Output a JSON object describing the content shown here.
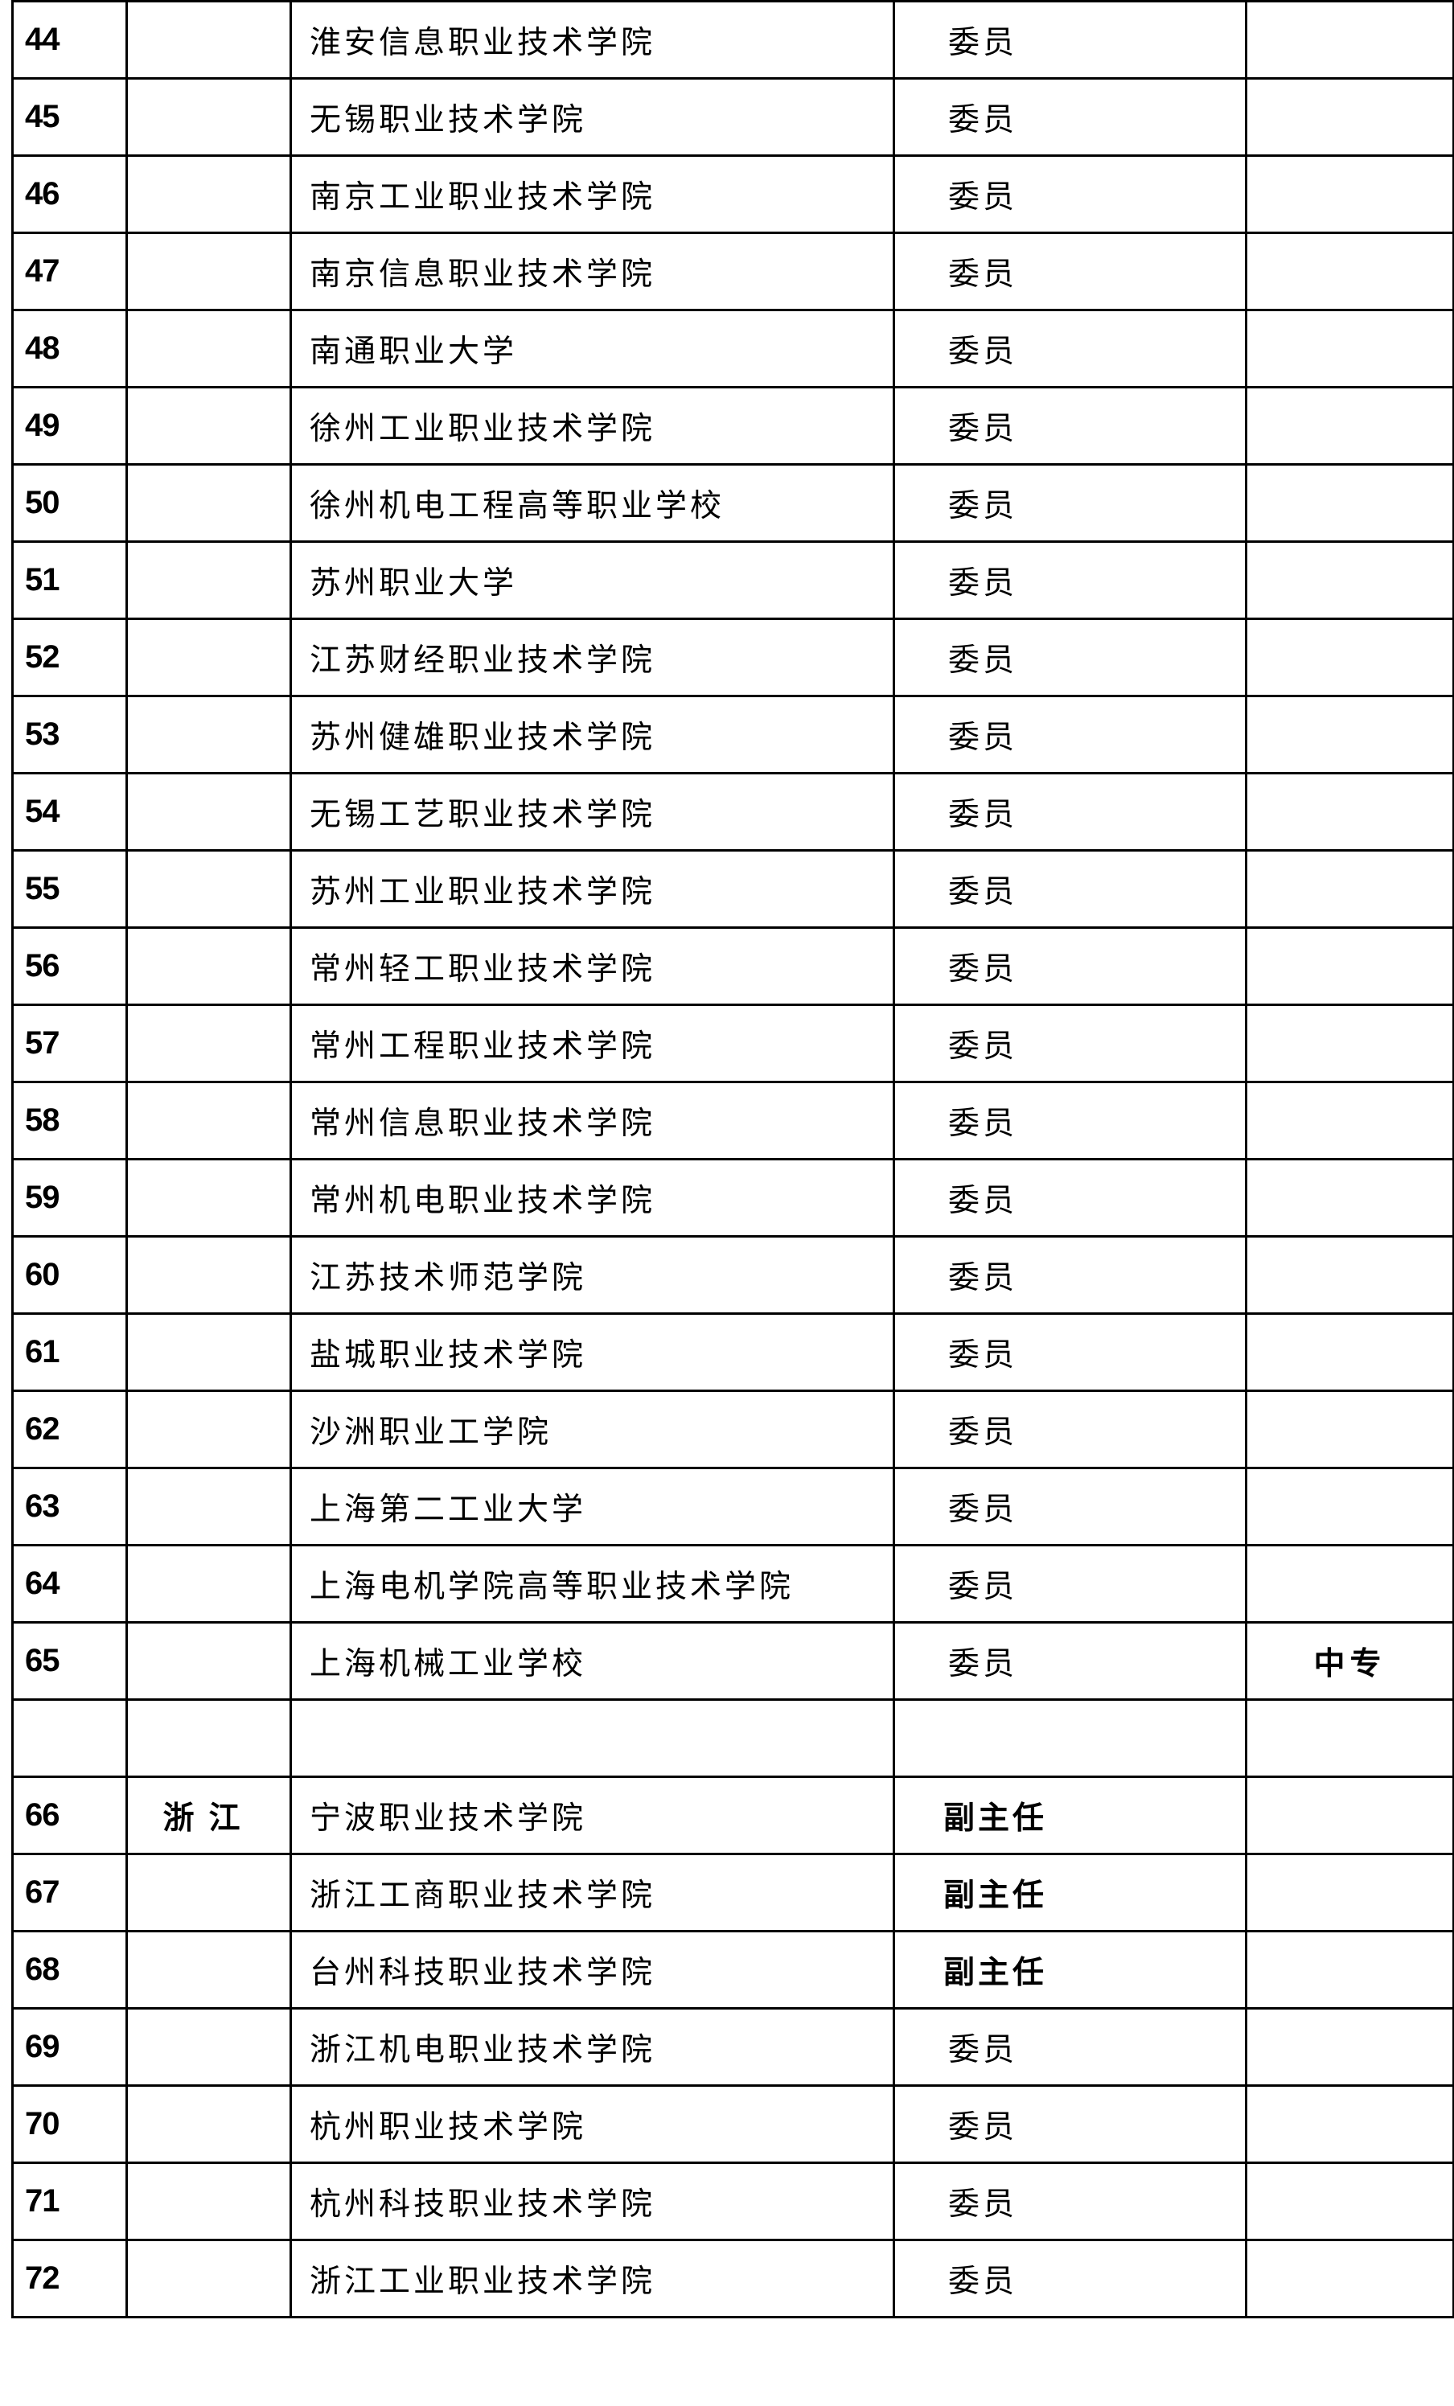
{
  "rows": [
    {
      "no": "44",
      "province": "",
      "school": "淮安信息职业技术学院",
      "role": "委员",
      "note": ""
    },
    {
      "no": "45",
      "province": "",
      "school": "无锡职业技术学院",
      "role": "委员",
      "note": ""
    },
    {
      "no": "46",
      "province": "",
      "school": "南京工业职业技术学院",
      "role": "委员",
      "note": ""
    },
    {
      "no": "47",
      "province": "",
      "school": "南京信息职业技术学院",
      "role": "委员",
      "note": ""
    },
    {
      "no": "48",
      "province": "",
      "school": "南通职业大学",
      "role": "委员",
      "note": ""
    },
    {
      "no": "49",
      "province": "",
      "school": "徐州工业职业技术学院",
      "role": "委员",
      "note": ""
    },
    {
      "no": "50",
      "province": "",
      "school": "徐州机电工程高等职业学校",
      "role": "委员",
      "note": ""
    },
    {
      "no": "51",
      "province": "",
      "school": "苏州职业大学",
      "role": "委员",
      "note": ""
    },
    {
      "no": "52",
      "province": "",
      "school": "江苏财经职业技术学院",
      "role": "委员",
      "note": ""
    },
    {
      "no": "53",
      "province": "",
      "school": "苏州健雄职业技术学院",
      "role": "委员",
      "note": ""
    },
    {
      "no": "54",
      "province": "",
      "school": "无锡工艺职业技术学院",
      "role": "委员",
      "note": ""
    },
    {
      "no": "55",
      "province": "",
      "school": "苏州工业职业技术学院",
      "role": "委员",
      "note": ""
    },
    {
      "no": "56",
      "province": "",
      "school": "常州轻工职业技术学院",
      "role": "委员",
      "note": ""
    },
    {
      "no": "57",
      "province": "",
      "school": "常州工程职业技术学院",
      "role": "委员",
      "note": ""
    },
    {
      "no": "58",
      "province": "",
      "school": "常州信息职业技术学院",
      "role": "委员",
      "note": ""
    },
    {
      "no": "59",
      "province": "",
      "school": "常州机电职业技术学院",
      "role": "委员",
      "note": ""
    },
    {
      "no": "60",
      "province": "",
      "school": "江苏技术师范学院",
      "role": "委员",
      "note": ""
    },
    {
      "no": "61",
      "province": "",
      "school": "盐城职业技术学院",
      "role": "委员",
      "note": ""
    },
    {
      "no": "62",
      "province": "",
      "school": "沙洲职业工学院",
      "role": "委员",
      "note": ""
    },
    {
      "no": "63",
      "province": "",
      "school": "上海第二工业大学",
      "role": "委员",
      "note": ""
    },
    {
      "no": "64",
      "province": "",
      "school": "上海电机学院高等职业技术学院",
      "role": "委员",
      "note": ""
    },
    {
      "no": "65",
      "province": "",
      "school": "上海机械工业学校",
      "role": "委员",
      "note": "中专"
    },
    {
      "no": "",
      "province": "",
      "school": "",
      "role": "",
      "note": ""
    },
    {
      "no": "66",
      "province": "浙江",
      "school": "宁波职业技术学院",
      "role": "副主任",
      "note": ""
    },
    {
      "no": "67",
      "province": "",
      "school": "浙江工商职业技术学院",
      "role": "副主任",
      "note": ""
    },
    {
      "no": "68",
      "province": "",
      "school": "台州科技职业技术学院",
      "role": "副主任",
      "note": ""
    },
    {
      "no": "69",
      "province": "",
      "school": "浙江机电职业技术学院",
      "role": "委员",
      "note": ""
    },
    {
      "no": "70",
      "province": "",
      "school": "杭州职业技术学院",
      "role": "委员",
      "note": ""
    },
    {
      "no": "71",
      "province": "",
      "school": "杭州科技职业技术学院",
      "role": "委员",
      "note": ""
    },
    {
      "no": "72",
      "province": "",
      "school": "浙江工业职业技术学院",
      "role": "委员",
      "note": ""
    }
  ]
}
